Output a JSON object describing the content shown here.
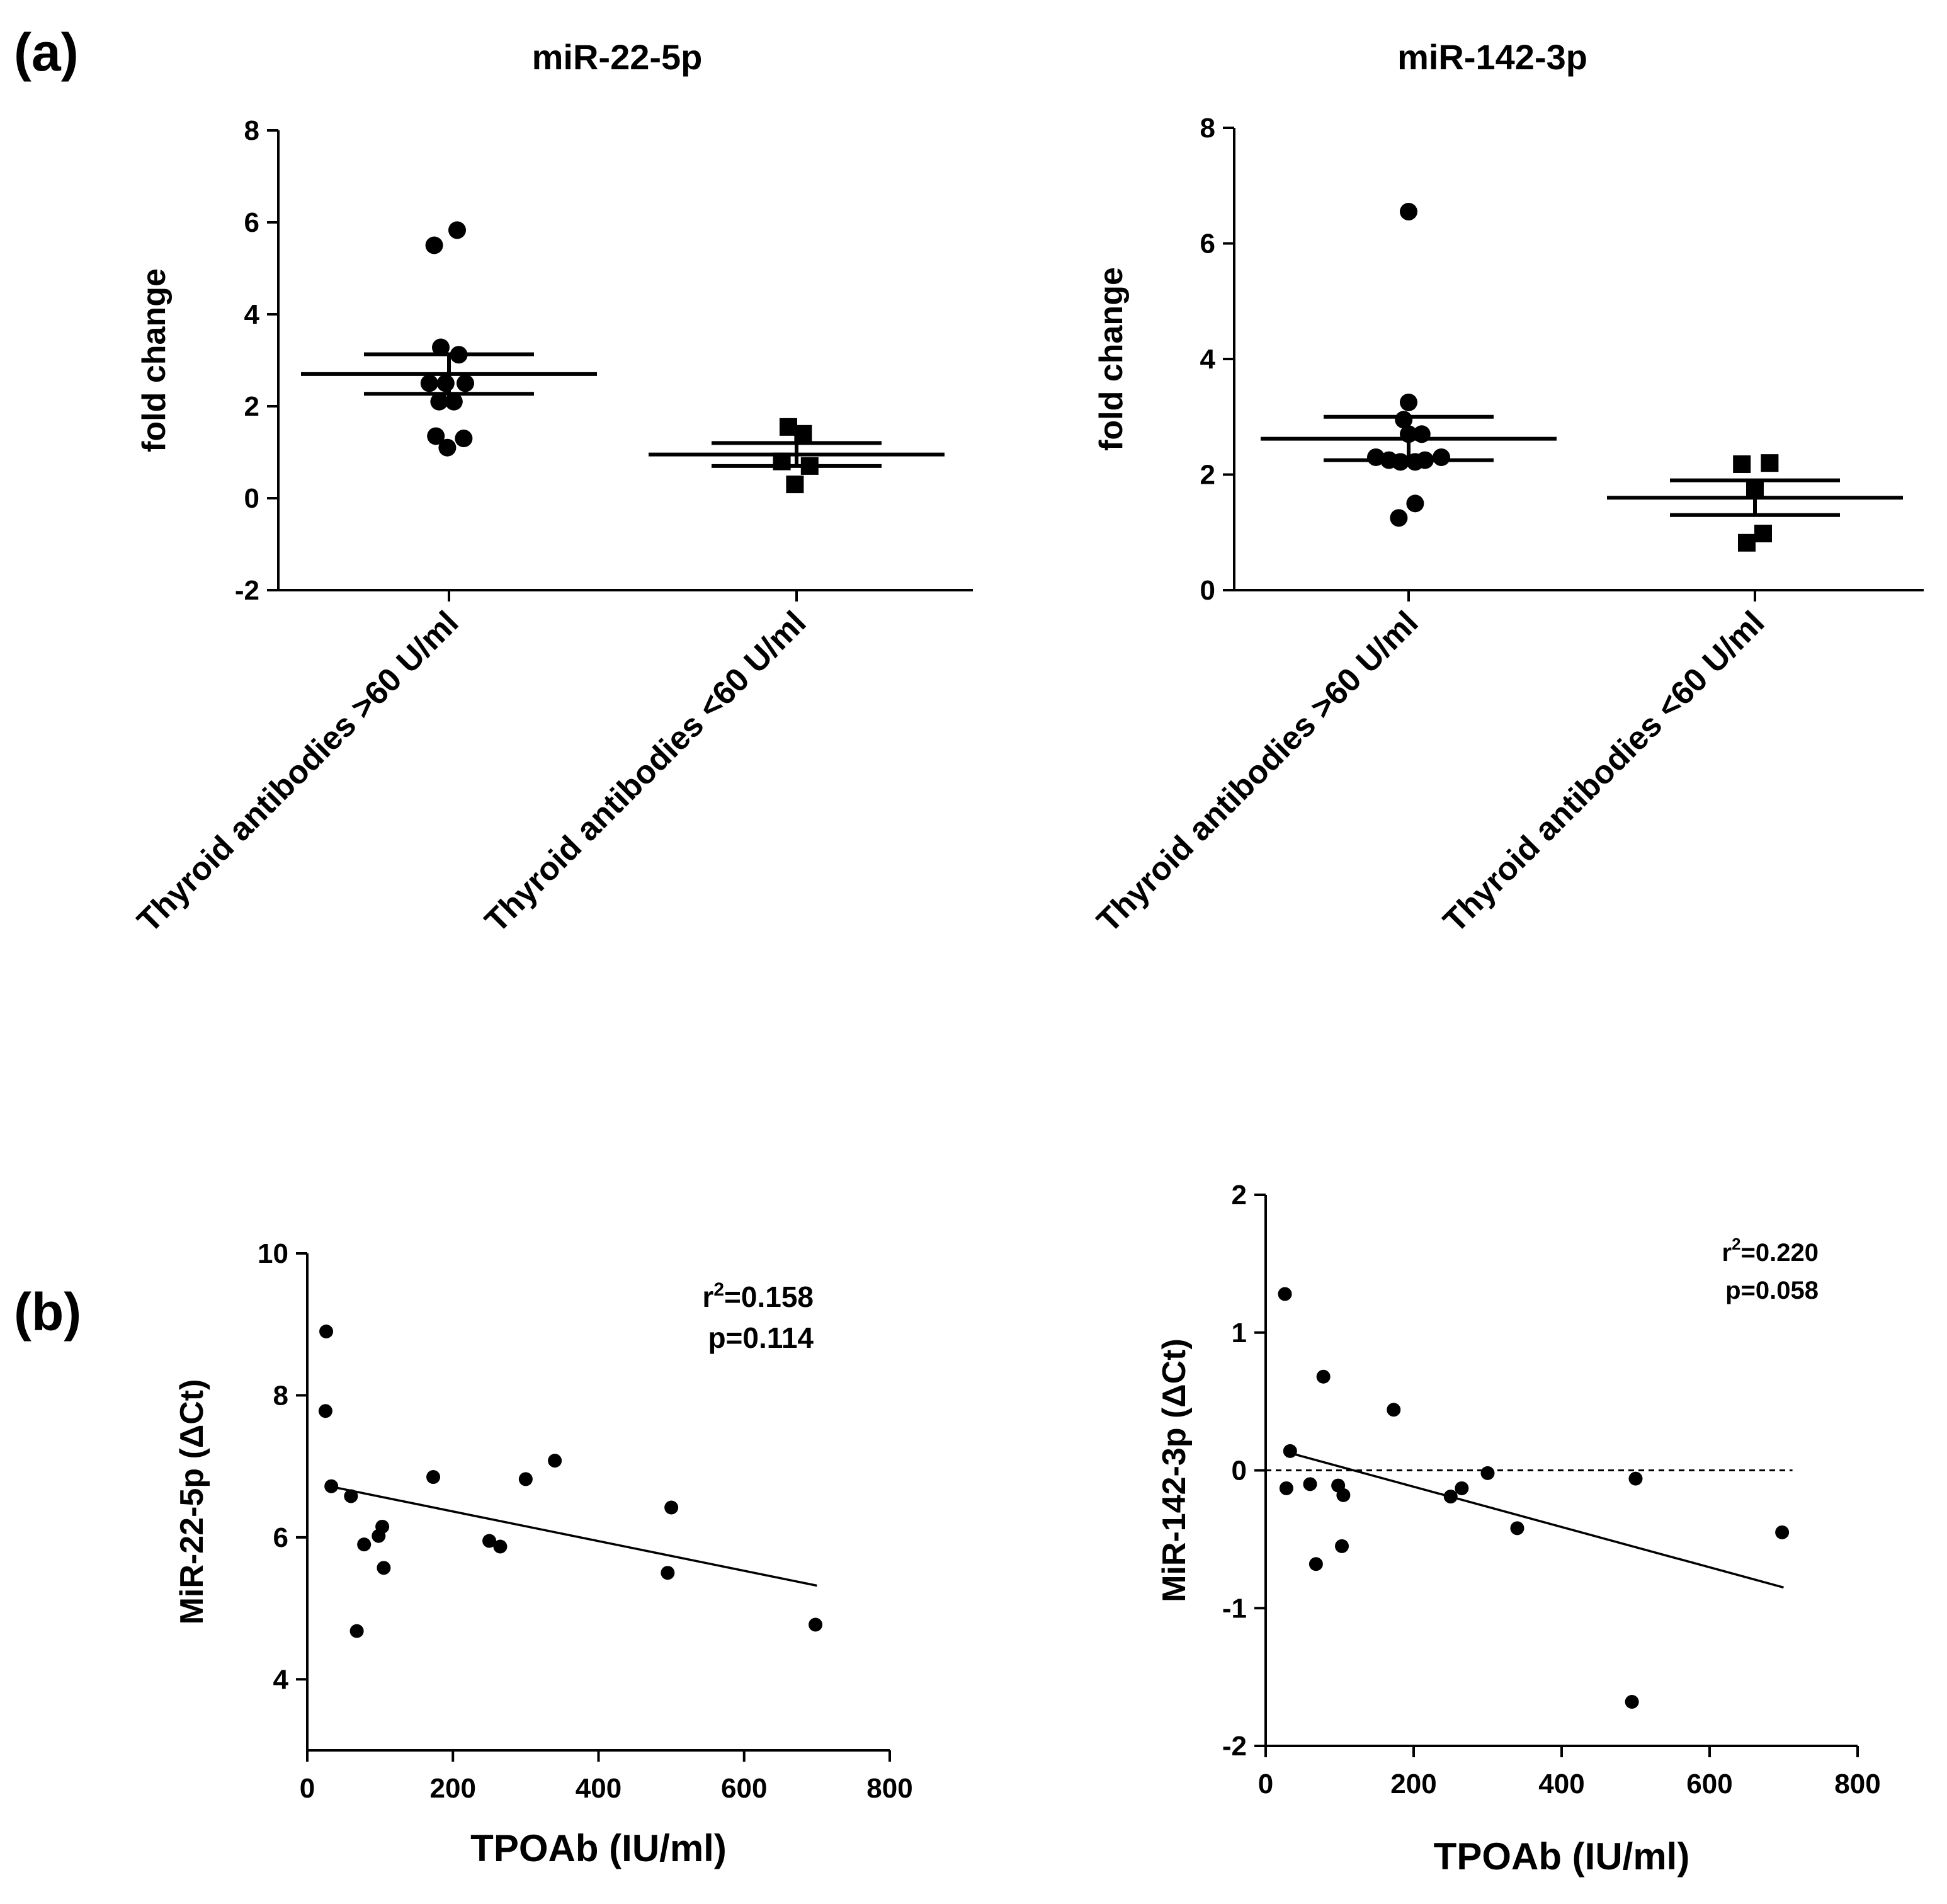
{
  "panel_labels": [
    "(a)",
    "(b)"
  ],
  "chart_data": [
    {
      "id": "a1",
      "type": "scatter",
      "title": "miR-22-5p",
      "xlabel": "",
      "ylabel": "fold change",
      "ylim": [
        -2,
        8
      ],
      "yticks": [
        -2,
        0,
        2,
        4,
        6,
        8
      ],
      "ytick_labels": [
        "-2",
        "0",
        "2",
        "4",
        "6",
        "8"
      ],
      "categories": [
        "Thyroid antibodies >60 U/ml",
        "Thyroid antibodies <60 U/ml"
      ],
      "series": [
        {
          "name": "Thyroid antibodies >60 U/ml",
          "marker": "circle",
          "points": [
            [
              -0.09,
              5.5
            ],
            [
              0.05,
              5.83
            ],
            [
              -0.05,
              3.28
            ],
            [
              0.06,
              3.12
            ],
            [
              -0.12,
              2.5
            ],
            [
              -0.02,
              2.5
            ],
            [
              0.1,
              2.5
            ],
            [
              -0.06,
              2.1
            ],
            [
              0.03,
              2.1
            ],
            [
              -0.08,
              1.35
            ],
            [
              0.09,
              1.3
            ],
            [
              -0.01,
              1.1
            ]
          ],
          "mean": 2.7,
          "sem_low": 2.27,
          "sem_high": 3.13
        },
        {
          "name": "Thyroid antibodies <60 U/ml",
          "marker": "square",
          "points": [
            [
              -0.05,
              1.55
            ],
            [
              0.04,
              1.4
            ],
            [
              -0.09,
              0.8
            ],
            [
              0.08,
              0.7
            ],
            [
              -0.01,
              0.3
            ]
          ],
          "mean": 0.95,
          "sem_low": 0.7,
          "sem_high": 1.2
        }
      ]
    },
    {
      "id": "a2",
      "type": "scatter",
      "title": "miR-142-3p",
      "xlabel": "",
      "ylabel": "fold change",
      "ylim": [
        0,
        8
      ],
      "yticks": [
        0,
        2,
        4,
        6,
        8
      ],
      "ytick_labels": [
        "0",
        "2",
        "4",
        "6",
        "8"
      ],
      "categories": [
        "Thyroid antibodies >60 U/ml",
        "Thyroid antibodies <60 U/ml"
      ],
      "series": [
        {
          "name": "Thyroid antibodies >60 U/ml",
          "marker": "circle",
          "points": [
            [
              0.0,
              6.55
            ],
            [
              0.0,
              3.25
            ],
            [
              -0.03,
              2.95
            ],
            [
              0.08,
              2.7
            ],
            [
              0.0,
              2.7
            ],
            [
              -0.2,
              2.3
            ],
            [
              0.2,
              2.3
            ],
            [
              -0.12,
              2.25
            ],
            [
              -0.05,
              2.22
            ],
            [
              0.04,
              2.22
            ],
            [
              0.1,
              2.25
            ],
            [
              0.04,
              1.5
            ],
            [
              -0.06,
              1.25
            ]
          ],
          "mean": 2.62,
          "sem_low": 2.25,
          "sem_high": 3.0
        },
        {
          "name": "Thyroid antibodies <60 U/ml",
          "marker": "square",
          "points": [
            [
              -0.08,
              2.18
            ],
            [
              0.09,
              2.2
            ],
            [
              0.0,
              1.75
            ],
            [
              -0.05,
              0.82
            ],
            [
              0.05,
              0.98
            ]
          ],
          "mean": 1.6,
          "sem_low": 1.3,
          "sem_high": 1.9
        }
      ]
    },
    {
      "id": "b1",
      "type": "scatter",
      "title": "",
      "xlabel": "TPOAb (IU/ml)",
      "ylabel": "MiR-22-5p (ΔCt)",
      "xlim": [
        0,
        800
      ],
      "ylim": [
        3,
        10
      ],
      "xticks": [
        0,
        200,
        400,
        600,
        800
      ],
      "xtick_labels": [
        "0",
        "200",
        "400",
        "600",
        "800"
      ],
      "yticks": [
        4,
        6,
        8,
        10
      ],
      "ytick_labels": [
        "4",
        "6",
        "8",
        "10"
      ],
      "x": [
        26,
        25,
        33,
        60,
        68,
        78,
        98,
        103,
        105,
        173,
        250,
        265,
        300,
        340,
        495,
        500,
        698
      ],
      "y": [
        8.9,
        7.78,
        6.72,
        6.58,
        4.68,
        5.9,
        6.02,
        6.15,
        5.57,
        6.85,
        5.95,
        5.87,
        6.82,
        7.08,
        5.5,
        6.42,
        4.77
      ],
      "regression": {
        "x0": 30,
        "y0": 6.72,
        "x1": 700,
        "y1": 5.32
      },
      "annotation": {
        "r2_prefix": "r",
        "r2_sup": "2",
        "r2_value": "=0.158",
        "p": "p=0.114"
      }
    },
    {
      "id": "b2",
      "type": "scatter",
      "title": "",
      "xlabel": "TPOAb (IU/ml)",
      "ylabel": "MiR-142-3p (ΔCt)",
      "xlim": [
        0,
        800
      ],
      "ylim": [
        -2,
        2
      ],
      "xticks": [
        0,
        200,
        400,
        600,
        800
      ],
      "xtick_labels": [
        "0",
        "200",
        "400",
        "600",
        "800"
      ],
      "yticks": [
        -2,
        -1,
        0,
        1,
        2
      ],
      "ytick_labels": [
        "-2",
        "-1",
        "0",
        "1",
        "2"
      ],
      "x": [
        26,
        28,
        33,
        60,
        68,
        78,
        98,
        103,
        105,
        173,
        250,
        265,
        300,
        340,
        495,
        500,
        698
      ],
      "y": [
        1.28,
        -0.13,
        0.14,
        -0.1,
        -0.68,
        0.68,
        -0.11,
        -0.55,
        -0.18,
        0.44,
        -0.19,
        -0.13,
        -0.02,
        -0.42,
        -1.68,
        -0.06,
        -0.45
      ],
      "regression": {
        "x0": 30,
        "y0": 0.13,
        "x1": 700,
        "y1": -0.85
      },
      "reference_line_y": 0,
      "annotation": {
        "r2_prefix": "r",
        "r2_sup": "2",
        "r2_value": "=0.220",
        "p": "p=0.058"
      }
    }
  ]
}
